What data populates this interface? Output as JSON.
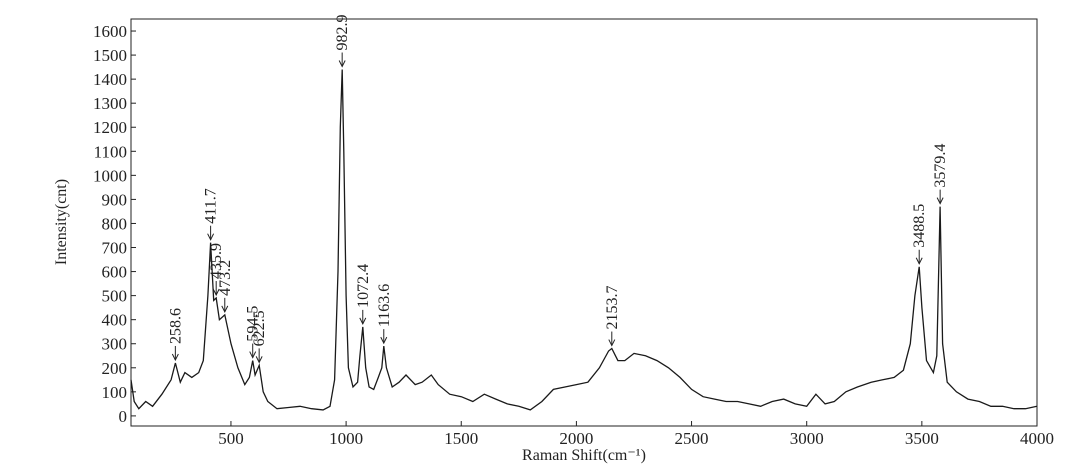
{
  "chart_data": {
    "type": "line",
    "x_label": "Raman Shift(cm⁻¹)",
    "y_label": "Intensity(cnt)",
    "xlim": [
      66,
      4000
    ],
    "ylim": [
      -42,
      1650
    ],
    "xticks": [
      500,
      1000,
      1500,
      2000,
      2500,
      3000,
      3500,
      4000
    ],
    "yticks": [
      0,
      100,
      200,
      300,
      400,
      500,
      600,
      700,
      800,
      900,
      1000,
      1100,
      1200,
      1300,
      1400,
      1500,
      1600
    ],
    "color": "#1a1a1a",
    "x": [
      66,
      80,
      100,
      130,
      160,
      200,
      240,
      258.6,
      280,
      300,
      330,
      360,
      380,
      400,
      411.7,
      425,
      435.9,
      450,
      473.2,
      500,
      530,
      560,
      580,
      594.5,
      605,
      622.5,
      640,
      660,
      700,
      750,
      800,
      850,
      900,
      930,
      950,
      965,
      975,
      982.9,
      990,
      1000,
      1010,
      1030,
      1050,
      1060,
      1072.4,
      1085,
      1100,
      1120,
      1140,
      1155,
      1163.6,
      1175,
      1200,
      1230,
      1260,
      1300,
      1330,
      1370,
      1400,
      1450,
      1500,
      1550,
      1600,
      1650,
      1700,
      1750,
      1800,
      1850,
      1900,
      1950,
      2000,
      2050,
      2100,
      2140,
      2153.7,
      2180,
      2210,
      2250,
      2300,
      2350,
      2400,
      2450,
      2500,
      2550,
      2600,
      2650,
      2700,
      2750,
      2800,
      2850,
      2900,
      2950,
      3000,
      3040,
      3080,
      3120,
      3170,
      3220,
      3280,
      3330,
      3380,
      3420,
      3450,
      3470,
      3488.5,
      3500,
      3520,
      3550,
      3565,
      3579.4,
      3590,
      3610,
      3650,
      3700,
      3750,
      3800,
      3850,
      3900,
      3950,
      4000
    ],
    "values": [
      150,
      60,
      30,
      60,
      40,
      90,
      150,
      220,
      140,
      180,
      160,
      180,
      230,
      500,
      720,
      480,
      490,
      400,
      420,
      300,
      200,
      130,
      160,
      230,
      170,
      210,
      100,
      60,
      30,
      35,
      40,
      30,
      25,
      40,
      150,
      600,
      1200,
      1440,
      1100,
      500,
      200,
      120,
      140,
      250,
      370,
      200,
      120,
      110,
      160,
      200,
      290,
      200,
      120,
      140,
      170,
      130,
      140,
      170,
      130,
      90,
      80,
      60,
      90,
      70,
      50,
      40,
      25,
      60,
      110,
      120,
      130,
      140,
      200,
      270,
      280,
      230,
      230,
      260,
      250,
      230,
      200,
      160,
      110,
      80,
      70,
      60,
      60,
      50,
      40,
      60,
      70,
      50,
      40,
      90,
      50,
      60,
      100,
      120,
      140,
      150,
      160,
      190,
      300,
      500,
      620,
      450,
      230,
      180,
      250,
      870,
      300,
      140,
      100,
      70,
      60,
      40,
      40,
      30,
      30,
      40
    ],
    "annotations": [
      {
        "label": "258.6",
        "x": 258.6
      },
      {
        "label": "411.7",
        "x": 411.7
      },
      {
        "label": "435.9",
        "x": 435.9
      },
      {
        "label": "473.2",
        "x": 473.2
      },
      {
        "label": "594.5",
        "x": 594.5
      },
      {
        "label": "622.5",
        "x": 622.5
      },
      {
        "label": "982.9",
        "x": 982.9
      },
      {
        "label": "1072.4",
        "x": 1072.4
      },
      {
        "label": "1163.6",
        "x": 1163.6
      },
      {
        "label": "2153.7",
        "x": 2153.7
      },
      {
        "label": "3488.5",
        "x": 3488.5
      },
      {
        "label": "3579.4",
        "x": 3579.4
      }
    ]
  }
}
